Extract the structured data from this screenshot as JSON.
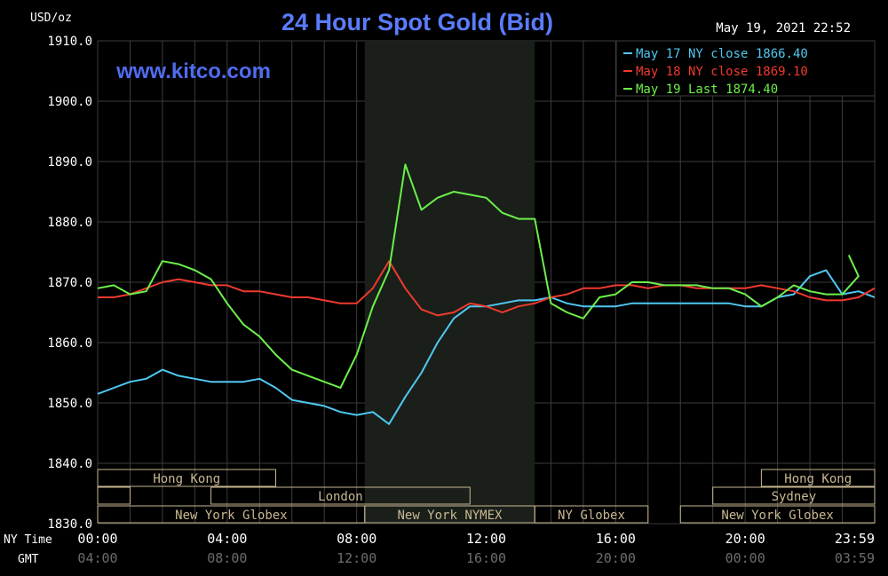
{
  "chart_data": {
    "type": "line",
    "title": "24 Hour Spot Gold (Bid)",
    "watermark": "www.kitco.com",
    "ylabel": "USD/oz",
    "timestamp": "May 19, 2021 22:52",
    "ylim": [
      1830,
      1910
    ],
    "xlim_hours": [
      0,
      24
    ],
    "grid": true,
    "legend_position": "top-right",
    "y_ticks": [
      "1910.0",
      "1900.0",
      "1890.0",
      "1880.0",
      "1870.0",
      "1860.0",
      "1850.0",
      "1840.0",
      "1830.0"
    ],
    "x_axis": {
      "row1_label": "NY Time",
      "row2_label": "GMT",
      "ny_ticks": [
        "00:00",
        "04:00",
        "08:00",
        "12:00",
        "16:00",
        "20:00",
        "23:59"
      ],
      "gmt_ticks": [
        "04:00",
        "08:00",
        "12:00",
        "16:00",
        "20:00",
        "00:00",
        "03:59"
      ]
    },
    "highlight_period": [
      8.25,
      13.5
    ],
    "colors": {
      "background": "#000000",
      "grid": "#3d3d3d",
      "text": "#ffffff",
      "title": "#5b7cff",
      "watermark": "#4f6cf0",
      "highlight": "#1a1f1a",
      "session": "#c9b892",
      "may17": "#4fc8f0",
      "may18": "#f03a2e",
      "may19": "#6cf04a"
    },
    "sessions": [
      {
        "label": "Hong Kong",
        "row": 0,
        "start": 0,
        "end": 5.5
      },
      {
        "label": "",
        "row": 1,
        "start": 0,
        "end": 1
      },
      {
        "label": "London",
        "row": 1,
        "start": 3.5,
        "end": 11.5
      },
      {
        "label": "New York Globex",
        "row": 2,
        "start": 0,
        "end": 8.25
      },
      {
        "label": "New York NYMEX",
        "row": 2,
        "start": 8.25,
        "end": 13.5
      },
      {
        "label": "NY Globex",
        "row": 2,
        "start": 13.5,
        "end": 17
      },
      {
        "label": "Hong Kong",
        "row": 0,
        "start": 20.5,
        "end": 24
      },
      {
        "label": "Sydney",
        "row": 1,
        "start": 19,
        "end": 24
      },
      {
        "label": "New York Globex",
        "row": 2,
        "start": 18,
        "end": 24
      }
    ],
    "series": [
      {
        "name": "May 17 NY close 1866.40",
        "color_key": "may17",
        "x": [
          0,
          0.5,
          1,
          1.5,
          2,
          2.5,
          3,
          3.5,
          4,
          4.5,
          5,
          5.5,
          6,
          6.5,
          7,
          7.5,
          8,
          8.5,
          9,
          9.5,
          10,
          10.5,
          11,
          11.5,
          12,
          12.5,
          13,
          13.5,
          14,
          14.5,
          15,
          15.5,
          16,
          16.5,
          17,
          17.5,
          18,
          18.5,
          19,
          19.5,
          20,
          20.5,
          21,
          21.5,
          22,
          22.5,
          23,
          23.5,
          24
        ],
        "values": [
          1851.5,
          1852.5,
          1853.5,
          1854,
          1855.5,
          1854.5,
          1854,
          1853.5,
          1853.5,
          1853.5,
          1854,
          1852.5,
          1850.5,
          1850,
          1849.5,
          1848.5,
          1848,
          1848.5,
          1846.5,
          1851,
          1855,
          1860,
          1864,
          1866,
          1866,
          1866.5,
          1867,
          1867,
          1867.5,
          1866.5,
          1866,
          1866,
          1866,
          1866.5,
          1866.5,
          1866.5,
          1866.5,
          1866.5,
          1866.5,
          1866.5,
          1866,
          1866,
          1867.5,
          1868,
          1871,
          1872,
          1868,
          1868.5,
          1867.5
        ]
      },
      {
        "name": "May 18 NY close 1869.10",
        "color_key": "may18",
        "x": [
          0,
          0.5,
          1,
          1.5,
          2,
          2.5,
          3,
          3.5,
          4,
          4.5,
          5,
          5.5,
          6,
          6.5,
          7,
          7.5,
          8,
          8.5,
          9,
          9.5,
          10,
          10.5,
          11,
          11.5,
          12,
          12.5,
          13,
          13.5,
          14,
          14.5,
          15,
          15.5,
          16,
          16.5,
          17,
          17.5,
          18,
          18.5,
          19,
          19.5,
          20,
          20.5,
          21,
          21.5,
          22,
          22.5,
          23,
          23.5,
          24
        ],
        "values": [
          1867.5,
          1867.5,
          1868,
          1869,
          1870,
          1870.5,
          1870,
          1869.5,
          1869.5,
          1868.5,
          1868.5,
          1868,
          1867.5,
          1867.5,
          1867,
          1866.5,
          1866.5,
          1869,
          1873.5,
          1869,
          1865.5,
          1864.5,
          1865,
          1866.5,
          1866,
          1865,
          1866,
          1866.5,
          1867.5,
          1868,
          1869,
          1869,
          1869.5,
          1869.5,
          1869,
          1869.5,
          1869.5,
          1869,
          1869,
          1869,
          1869,
          1869.5,
          1869,
          1868.5,
          1867.5,
          1867,
          1867,
          1867.5,
          1869
        ]
      },
      {
        "name": "May 19 Last 1874.40",
        "color_key": "may19",
        "x": [
          0,
          0.5,
          1,
          1.5,
          2,
          2.5,
          3,
          3.5,
          4,
          4.5,
          5,
          5.5,
          6,
          6.5,
          7,
          7.5,
          8,
          8.5,
          9,
          9.5,
          10,
          10.5,
          11,
          11.5,
          12,
          12.5,
          13,
          13.5,
          14,
          14.5,
          15,
          15.5,
          16,
          16.5,
          17,
          17.5,
          18,
          18.5,
          19,
          19.5,
          20,
          20.5,
          21,
          21.5,
          22,
          22.5,
          23,
          23.5,
          23.2
        ],
        "values": [
          1869,
          1869.5,
          1868,
          1868.5,
          1873.5,
          1873,
          1872,
          1870.5,
          1866.5,
          1863,
          1861,
          1858,
          1855.5,
          1854.5,
          1853.5,
          1852.5,
          1858,
          1866,
          1872,
          1889.5,
          1882,
          1884,
          1885,
          1884.5,
          1884,
          1881.5,
          1880.5,
          1880.5,
          1866.5,
          1865,
          1864,
          1867.5,
          1868,
          1870,
          1870,
          1869.5,
          1869.5,
          1869.5,
          1869,
          1869,
          1868,
          1866,
          1867.5,
          1869.5,
          1868.5,
          1868,
          1868,
          1871,
          1874.5
        ]
      }
    ]
  }
}
